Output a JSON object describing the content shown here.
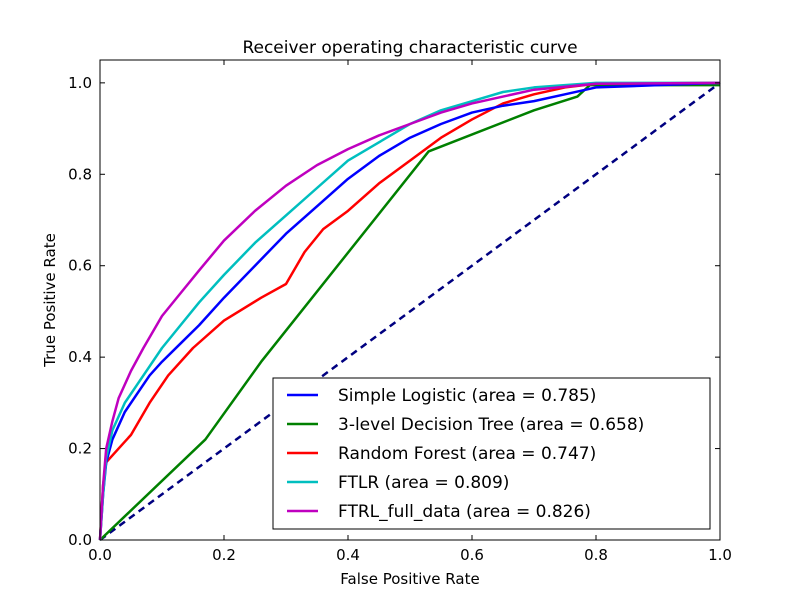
{
  "chart_data": {
    "type": "line",
    "title": "Receiver operating characteristic curve",
    "xlabel": "False Positive Rate",
    "ylabel": "True Positive Rate",
    "xlim": [
      0.0,
      1.0
    ],
    "ylim": [
      0.0,
      1.05
    ],
    "grid": false,
    "legend_placement": "lower-right",
    "x_ticks": [
      {
        "value": 0.0,
        "label": "0.0"
      },
      {
        "value": 0.2,
        "label": "0.2"
      },
      {
        "value": 0.4,
        "label": "0.4"
      },
      {
        "value": 0.6,
        "label": "0.6"
      },
      {
        "value": 0.8,
        "label": "0.8"
      },
      {
        "value": 1.0,
        "label": "1.0"
      }
    ],
    "y_ticks": [
      {
        "value": 0.0,
        "label": "0.0"
      },
      {
        "value": 0.2,
        "label": "0.2"
      },
      {
        "value": 0.4,
        "label": "0.4"
      },
      {
        "value": 0.6,
        "label": "0.6"
      },
      {
        "value": 0.8,
        "label": "0.8"
      },
      {
        "value": 1.0,
        "label": "1.0"
      }
    ],
    "series": [
      {
        "name": "Simple Logistic (area = 0.785)",
        "color": "#0000ff",
        "style": "solid",
        "points": [
          [
            0,
            0
          ],
          [
            0.005,
            0.1
          ],
          [
            0.01,
            0.17
          ],
          [
            0.02,
            0.22
          ],
          [
            0.04,
            0.28
          ],
          [
            0.06,
            0.32
          ],
          [
            0.08,
            0.36
          ],
          [
            0.1,
            0.39
          ],
          [
            0.13,
            0.43
          ],
          [
            0.16,
            0.47
          ],
          [
            0.2,
            0.53
          ],
          [
            0.25,
            0.6
          ],
          [
            0.3,
            0.67
          ],
          [
            0.35,
            0.73
          ],
          [
            0.4,
            0.79
          ],
          [
            0.45,
            0.84
          ],
          [
            0.5,
            0.88
          ],
          [
            0.55,
            0.91
          ],
          [
            0.6,
            0.935
          ],
          [
            0.65,
            0.95
          ],
          [
            0.7,
            0.96
          ],
          [
            0.75,
            0.975
          ],
          [
            0.8,
            0.99
          ],
          [
            0.9,
            0.995
          ],
          [
            1.0,
            1.0
          ]
        ]
      },
      {
        "name": "3-level Decision Tree (area = 0.658)",
        "color": "#008000",
        "style": "solid",
        "points": [
          [
            0,
            0
          ],
          [
            0.17,
            0.22
          ],
          [
            0.26,
            0.39
          ],
          [
            0.53,
            0.85
          ],
          [
            0.7,
            0.94
          ],
          [
            0.77,
            0.97
          ],
          [
            0.79,
            0.995
          ],
          [
            1.0,
            0.995
          ]
        ]
      },
      {
        "name": "Random Forest (area = 0.747)",
        "color": "#ff0000",
        "style": "solid",
        "points": [
          [
            0,
            0
          ],
          [
            0.005,
            0.12
          ],
          [
            0.01,
            0.17
          ],
          [
            0.03,
            0.2
          ],
          [
            0.05,
            0.23
          ],
          [
            0.08,
            0.3
          ],
          [
            0.11,
            0.36
          ],
          [
            0.15,
            0.42
          ],
          [
            0.2,
            0.48
          ],
          [
            0.26,
            0.53
          ],
          [
            0.3,
            0.56
          ],
          [
            0.33,
            0.63
          ],
          [
            0.36,
            0.68
          ],
          [
            0.4,
            0.72
          ],
          [
            0.45,
            0.78
          ],
          [
            0.5,
            0.83
          ],
          [
            0.55,
            0.88
          ],
          [
            0.6,
            0.92
          ],
          [
            0.65,
            0.955
          ],
          [
            0.7,
            0.975
          ],
          [
            0.75,
            0.99
          ],
          [
            0.8,
            0.998
          ],
          [
            1.0,
            1.0
          ]
        ]
      },
      {
        "name": "FTLR (area = 0.809)",
        "color": "#00bfbf",
        "style": "solid",
        "points": [
          [
            0,
            0
          ],
          [
            0.005,
            0.1
          ],
          [
            0.01,
            0.18
          ],
          [
            0.02,
            0.24
          ],
          [
            0.04,
            0.3
          ],
          [
            0.06,
            0.34
          ],
          [
            0.08,
            0.38
          ],
          [
            0.1,
            0.42
          ],
          [
            0.13,
            0.47
          ],
          [
            0.16,
            0.52
          ],
          [
            0.2,
            0.58
          ],
          [
            0.25,
            0.65
          ],
          [
            0.3,
            0.71
          ],
          [
            0.35,
            0.77
          ],
          [
            0.4,
            0.83
          ],
          [
            0.45,
            0.87
          ],
          [
            0.5,
            0.91
          ],
          [
            0.55,
            0.94
          ],
          [
            0.6,
            0.96
          ],
          [
            0.65,
            0.98
          ],
          [
            0.7,
            0.99
          ],
          [
            0.8,
            1.0
          ],
          [
            1.0,
            1.0
          ]
        ]
      },
      {
        "name": "FTRL_full_data (area = 0.826)",
        "color": "#bf00bf",
        "style": "solid",
        "points": [
          [
            0,
            0
          ],
          [
            0.005,
            0.12
          ],
          [
            0.01,
            0.2
          ],
          [
            0.02,
            0.26
          ],
          [
            0.03,
            0.31
          ],
          [
            0.05,
            0.37
          ],
          [
            0.07,
            0.42
          ],
          [
            0.1,
            0.49
          ],
          [
            0.13,
            0.54
          ],
          [
            0.16,
            0.59
          ],
          [
            0.2,
            0.655
          ],
          [
            0.25,
            0.72
          ],
          [
            0.3,
            0.775
          ],
          [
            0.35,
            0.82
          ],
          [
            0.4,
            0.855
          ],
          [
            0.45,
            0.885
          ],
          [
            0.5,
            0.91
          ],
          [
            0.55,
            0.935
          ],
          [
            0.6,
            0.955
          ],
          [
            0.65,
            0.97
          ],
          [
            0.7,
            0.985
          ],
          [
            0.8,
            0.998
          ],
          [
            1.0,
            1.0
          ]
        ]
      },
      {
        "name": "",
        "color": "#000080",
        "style": "dashed",
        "points": [
          [
            0,
            0
          ],
          [
            1,
            1
          ]
        ]
      }
    ]
  }
}
